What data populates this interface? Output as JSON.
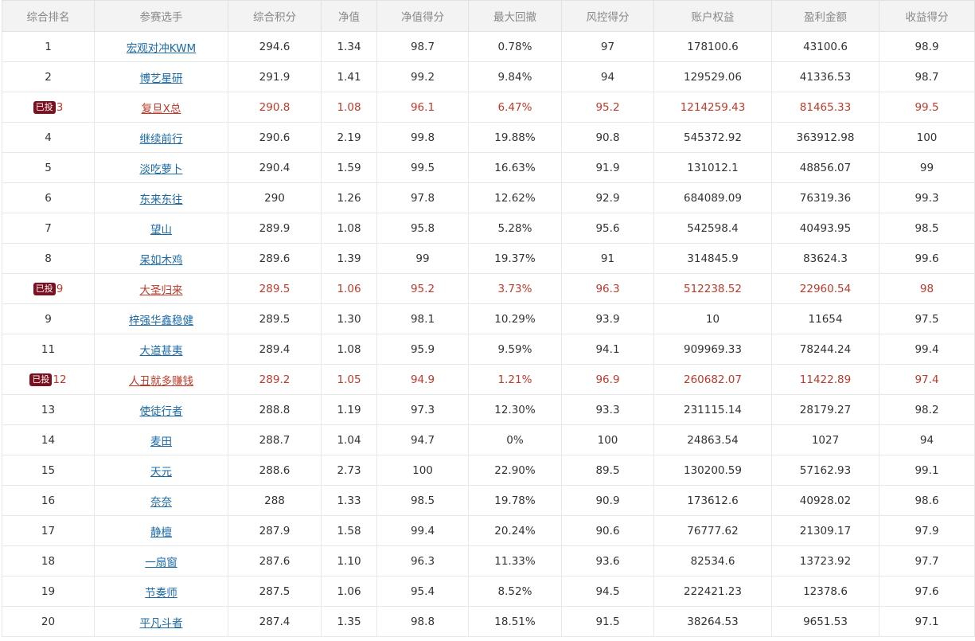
{
  "headers": [
    "综合排名",
    "参赛选手",
    "综合积分",
    "净值",
    "净值得分",
    "最大回撤",
    "风控得分",
    "账户权益",
    "盈利金额",
    "收益得分"
  ],
  "badge_label": "已投",
  "colors": {
    "highlight_text": "#c0392b",
    "badge_bg": "#7b1020",
    "link": "#1a6aa8"
  },
  "rows": [
    {
      "rank": "1",
      "player": "宏观对冲KWM",
      "score": "294.6",
      "nav": "1.34",
      "nav_score": "98.7",
      "max_dd": "0.78%",
      "risk_score": "97",
      "equity": "178100.6",
      "profit": "43100.6",
      "return_score": "98.9",
      "invested": false
    },
    {
      "rank": "2",
      "player": "博艺星研",
      "score": "291.9",
      "nav": "1.41",
      "nav_score": "99.2",
      "max_dd": "9.84%",
      "risk_score": "94",
      "equity": "129529.06",
      "profit": "41336.53",
      "return_score": "98.7",
      "invested": false
    },
    {
      "rank": "3",
      "player": "复旦X总",
      "score": "290.8",
      "nav": "1.08",
      "nav_score": "96.1",
      "max_dd": "6.47%",
      "risk_score": "95.2",
      "equity": "1214259.43",
      "profit": "81465.33",
      "return_score": "99.5",
      "invested": true
    },
    {
      "rank": "4",
      "player": "继续前行",
      "score": "290.6",
      "nav": "2.19",
      "nav_score": "99.8",
      "max_dd": "19.88%",
      "risk_score": "90.8",
      "equity": "545372.92",
      "profit": "363912.98",
      "return_score": "100",
      "invested": false
    },
    {
      "rank": "5",
      "player": "淡吃萝卜",
      "score": "290.4",
      "nav": "1.59",
      "nav_score": "99.5",
      "max_dd": "16.63%",
      "risk_score": "91.9",
      "equity": "131012.1",
      "profit": "48856.07",
      "return_score": "99",
      "invested": false
    },
    {
      "rank": "6",
      "player": "东来东往",
      "score": "290",
      "nav": "1.26",
      "nav_score": "97.8",
      "max_dd": "12.62%",
      "risk_score": "92.9",
      "equity": "684089.09",
      "profit": "76319.36",
      "return_score": "99.3",
      "invested": false
    },
    {
      "rank": "7",
      "player": "望山",
      "score": "289.9",
      "nav": "1.08",
      "nav_score": "95.8",
      "max_dd": "5.28%",
      "risk_score": "95.6",
      "equity": "542598.4",
      "profit": "40493.95",
      "return_score": "98.5",
      "invested": false
    },
    {
      "rank": "8",
      "player": "呆如木鸡",
      "score": "289.6",
      "nav": "1.39",
      "nav_score": "99",
      "max_dd": "19.37%",
      "risk_score": "91",
      "equity": "314845.9",
      "profit": "83624.3",
      "return_score": "99.6",
      "invested": false
    },
    {
      "rank": "9",
      "player": "大圣归来",
      "score": "289.5",
      "nav": "1.06",
      "nav_score": "95.2",
      "max_dd": "3.73%",
      "risk_score": "96.3",
      "equity": "512238.52",
      "profit": "22960.54",
      "return_score": "98",
      "invested": true
    },
    {
      "rank": "9",
      "player": "梓强华鑫稳健",
      "score": "289.5",
      "nav": "1.30",
      "nav_score": "98.1",
      "max_dd": "10.29%",
      "risk_score": "93.9",
      "equity": "10",
      "profit": "11654",
      "return_score": "97.5",
      "invested": false
    },
    {
      "rank": "11",
      "player": "大道甚夷",
      "score": "289.4",
      "nav": "1.08",
      "nav_score": "95.9",
      "max_dd": "9.59%",
      "risk_score": "94.1",
      "equity": "909969.33",
      "profit": "78244.24",
      "return_score": "99.4",
      "invested": false
    },
    {
      "rank": "12",
      "player": "人丑就多赚钱",
      "score": "289.2",
      "nav": "1.05",
      "nav_score": "94.9",
      "max_dd": "1.21%",
      "risk_score": "96.9",
      "equity": "260682.07",
      "profit": "11422.89",
      "return_score": "97.4",
      "invested": true
    },
    {
      "rank": "13",
      "player": "使徒行者",
      "score": "288.8",
      "nav": "1.19",
      "nav_score": "97.3",
      "max_dd": "12.30%",
      "risk_score": "93.3",
      "equity": "231115.14",
      "profit": "28179.27",
      "return_score": "98.2",
      "invested": false
    },
    {
      "rank": "14",
      "player": "麦田",
      "score": "288.7",
      "nav": "1.04",
      "nav_score": "94.7",
      "max_dd": "0%",
      "risk_score": "100",
      "equity": "24863.54",
      "profit": "1027",
      "return_score": "94",
      "invested": false
    },
    {
      "rank": "15",
      "player": "天元",
      "score": "288.6",
      "nav": "2.73",
      "nav_score": "100",
      "max_dd": "22.90%",
      "risk_score": "89.5",
      "equity": "130200.59",
      "profit": "57162.93",
      "return_score": "99.1",
      "invested": false
    },
    {
      "rank": "16",
      "player": "奈奈",
      "score": "288",
      "nav": "1.33",
      "nav_score": "98.5",
      "max_dd": "19.78%",
      "risk_score": "90.9",
      "equity": "173612.6",
      "profit": "40928.02",
      "return_score": "98.6",
      "invested": false
    },
    {
      "rank": "17",
      "player": "静檀",
      "score": "287.9",
      "nav": "1.58",
      "nav_score": "99.4",
      "max_dd": "20.24%",
      "risk_score": "90.6",
      "equity": "76777.62",
      "profit": "21309.17",
      "return_score": "97.9",
      "invested": false
    },
    {
      "rank": "18",
      "player": "一扇窗",
      "score": "287.6",
      "nav": "1.10",
      "nav_score": "96.3",
      "max_dd": "11.33%",
      "risk_score": "93.6",
      "equity": "82534.6",
      "profit": "13723.92",
      "return_score": "97.7",
      "invested": false
    },
    {
      "rank": "19",
      "player": "节奏师",
      "score": "287.5",
      "nav": "1.06",
      "nav_score": "95.4",
      "max_dd": "8.52%",
      "risk_score": "94.5",
      "equity": "222421.23",
      "profit": "12378.6",
      "return_score": "97.6",
      "invested": false
    },
    {
      "rank": "20",
      "player": "平凡斗者",
      "score": "287.4",
      "nav": "1.35",
      "nav_score": "98.8",
      "max_dd": "18.51%",
      "risk_score": "91.5",
      "equity": "38264.53",
      "profit": "9651.53",
      "return_score": "97.1",
      "invested": false
    }
  ]
}
